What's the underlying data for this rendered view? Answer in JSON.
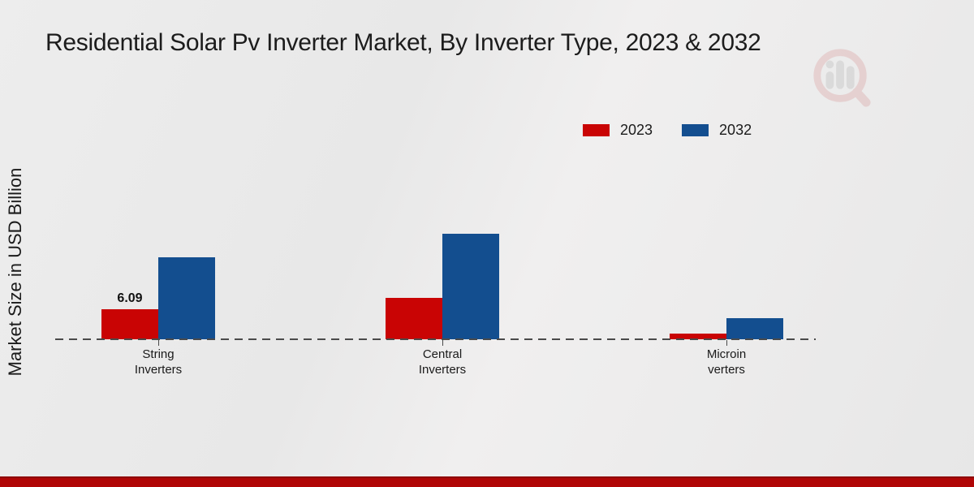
{
  "page": {
    "footer_bar_color": "#b00606",
    "footer_bar_edge_color": "#8e0202",
    "background_color": "#eaeaea"
  },
  "watermark": {
    "icon": "magnifier-bar-chart-logo",
    "ring_color": "#d99f9f",
    "bars_color": "#b9b9b9"
  },
  "chart_data": {
    "type": "bar",
    "title": "Residential Solar Pv Inverter Market, By Inverter Type, 2023 & 2032",
    "ylabel": "Market Size in USD Billion",
    "xlabel": "",
    "categories": [
      "String Inverters",
      "Central Inverters",
      "Microinverters"
    ],
    "category_display_lines": [
      [
        "String",
        "Inverters"
      ],
      [
        "Central",
        "Inverters"
      ],
      [
        "Microin",
        "verters"
      ]
    ],
    "series": [
      {
        "name": "2023",
        "color": "#c90404",
        "values": [
          6.09,
          8.5,
          1.2
        ]
      },
      {
        "name": "2032",
        "color": "#134e8f",
        "values": [
          16.8,
          21.7,
          4.3
        ]
      }
    ],
    "bar_labels": [
      {
        "series_index": 0,
        "category_index": 0,
        "text": "6.09"
      }
    ],
    "ylim": [
      0,
      25
    ],
    "grid": false,
    "legend_position": "top-right",
    "baseline_style": "dashed",
    "axis_color": "#4a4a4a",
    "label_color": "#1a1a1a"
  }
}
